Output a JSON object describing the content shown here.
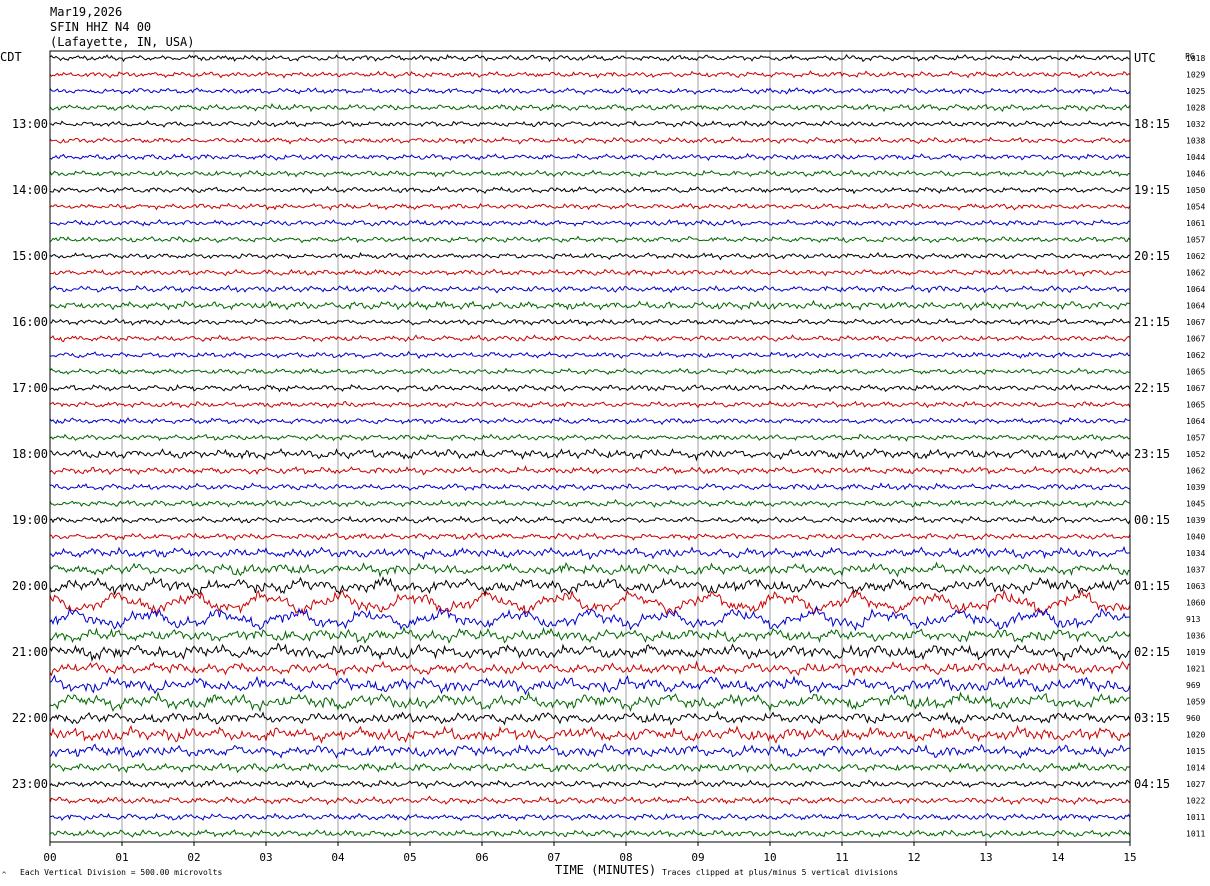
{
  "header": {
    "date": "Mar19,2026",
    "station": "SFIN HHZ N4 00",
    "location": "(Lafayette, IN, USA)"
  },
  "left_timezone": "CDT",
  "right_timezone": "UTC",
  "right_column_header": "PG",
  "footer": {
    "scale_prefix": "Each Vertical Division = ",
    "scale_value": "500.00 microvolts",
    "xlabel": "TIME (MINUTES)",
    "clip_note": "Traces clipped at plus/minus 5 vertical divisions"
  },
  "colors": {
    "trace_cycle": [
      "#000000",
      "#cc0000",
      "#0000cc",
      "#006600"
    ],
    "grid": "#888888"
  },
  "chart_data": {
    "type": "line",
    "title": "SFIN HHZ N4 00",
    "xlabel": "TIME (MINUTES)",
    "x_ticks": [
      "00",
      "01",
      "02",
      "03",
      "04",
      "05",
      "06",
      "07",
      "08",
      "09",
      "10",
      "11",
      "12",
      "13",
      "14",
      "15"
    ],
    "xlim": [
      0,
      15
    ],
    "left_hour_labels": [
      {
        "row": 4,
        "label": "13:00"
      },
      {
        "row": 8,
        "label": "14:00"
      },
      {
        "row": 12,
        "label": "15:00"
      },
      {
        "row": 16,
        "label": "16:00"
      },
      {
        "row": 20,
        "label": "17:00"
      },
      {
        "row": 24,
        "label": "18:00"
      },
      {
        "row": 28,
        "label": "19:00"
      },
      {
        "row": 32,
        "label": "20:00"
      },
      {
        "row": 36,
        "label": "21:00"
      },
      {
        "row": 40,
        "label": "22:00"
      },
      {
        "row": 44,
        "label": "23:00"
      }
    ],
    "right_hour_labels": [
      {
        "row": 0,
        "label": "UTC"
      },
      {
        "row": 4,
        "label": "18:15"
      },
      {
        "row": 8,
        "label": "19:15"
      },
      {
        "row": 12,
        "label": "20:15"
      },
      {
        "row": 16,
        "label": "21:15"
      },
      {
        "row": 20,
        "label": "22:15"
      },
      {
        "row": 24,
        "label": "23:15"
      },
      {
        "row": 28,
        "label": "00:15"
      },
      {
        "row": 32,
        "label": "01:15"
      },
      {
        "row": 36,
        "label": "02:15"
      },
      {
        "row": 40,
        "label": "03:15"
      },
      {
        "row": 44,
        "label": "04:15"
      }
    ],
    "trace_pg_values": [
      "1018",
      "1029",
      "1025",
      "1028",
      "1032",
      "1038",
      "1044",
      "1046",
      "1050",
      "1054",
      "1061",
      "1057",
      "1062",
      "1062",
      "1064",
      "1064",
      "1067",
      "1067",
      "1062",
      "1065",
      "1067",
      "1065",
      "1064",
      "1057",
      "1052",
      "1062",
      "1039",
      "1045",
      "1039",
      "1040",
      "1034",
      "1037",
      "1063",
      "1060",
      "913",
      "1036",
      "1019",
      "1021",
      "969",
      "1059",
      "960",
      "1020",
      "1015",
      "1014",
      "1027",
      "1022",
      "1011",
      "1011"
    ],
    "trace_activity": [
      1.0,
      1.0,
      1.0,
      1.1,
      1.0,
      1.0,
      1.0,
      1.0,
      1.0,
      1.0,
      1.0,
      1.0,
      1.0,
      1.0,
      1.1,
      1.4,
      1.0,
      1.0,
      1.0,
      1.0,
      1.1,
      1.0,
      1.0,
      1.0,
      1.6,
      1.2,
      1.1,
      1.1,
      1.1,
      1.1,
      1.6,
      1.8,
      2.6,
      4.8,
      4.2,
      2.0,
      2.2,
      1.8,
      2.6,
      2.8,
      1.8,
      2.2,
      1.9,
      1.5,
      1.2,
      1.2,
      1.1,
      1.2
    ]
  }
}
